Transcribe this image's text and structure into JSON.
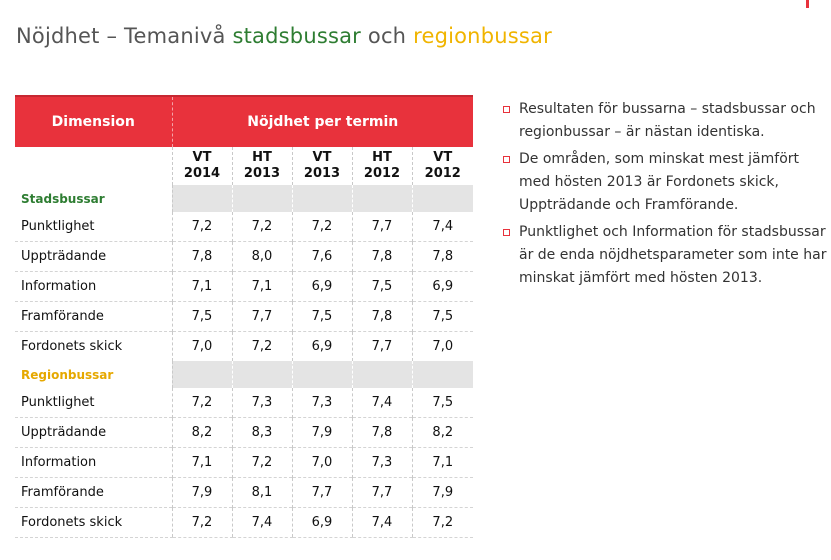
{
  "title": {
    "prefix": "Nöjdhet – Temanivå ",
    "stadsbussar": "stadsbussar",
    "och": " och ",
    "regionbussar": "regionbussar"
  },
  "colors": {
    "accent": "#e8323c",
    "stadsbussar": "#2e7d32",
    "regionbussar": "#f0b400"
  },
  "table": {
    "header_dimension": "Dimension",
    "header_terms": "Nöjdhet per termin",
    "terms": [
      {
        "season": "VT",
        "year": "2014"
      },
      {
        "season": "HT",
        "year": "2013"
      },
      {
        "season": "VT",
        "year": "2013"
      },
      {
        "season": "HT",
        "year": "2012"
      },
      {
        "season": "VT",
        "year": "2012"
      }
    ],
    "groups": [
      {
        "name": "Stadsbussar",
        "rows": [
          {
            "label": "Punktlighet",
            "values": [
              "7,2",
              "7,2",
              "7,2",
              "7,7",
              "7,4"
            ]
          },
          {
            "label": "Uppträdande",
            "values": [
              "7,8",
              "8,0",
              "7,6",
              "7,8",
              "7,8"
            ]
          },
          {
            "label": "Information",
            "values": [
              "7,1",
              "7,1",
              "6,9",
              "7,5",
              "6,9"
            ]
          },
          {
            "label": "Framförande",
            "values": [
              "7,5",
              "7,7",
              "7,5",
              "7,8",
              "7,5"
            ]
          },
          {
            "label": "Fordonets skick",
            "values": [
              "7,0",
              "7,2",
              "6,9",
              "7,7",
              "7,0"
            ]
          }
        ]
      },
      {
        "name": "Regionbussar",
        "rows": [
          {
            "label": "Punktlighet",
            "values": [
              "7,2",
              "7,3",
              "7,3",
              "7,4",
              "7,5"
            ]
          },
          {
            "label": "Uppträdande",
            "values": [
              "8,2",
              "8,3",
              "7,9",
              "7,8",
              "8,2"
            ]
          },
          {
            "label": "Information",
            "values": [
              "7,1",
              "7,2",
              "7,0",
              "7,3",
              "7,1"
            ]
          },
          {
            "label": "Framförande",
            "values": [
              "7,9",
              "8,1",
              "7,7",
              "7,7",
              "7,9"
            ]
          },
          {
            "label": "Fordonets skick",
            "values": [
              "7,2",
              "7,4",
              "6,9",
              "7,4",
              "7,2"
            ]
          }
        ]
      }
    ]
  },
  "notes": [
    "Resultaten för bussarna – stadsbussar och regionbussar – är nästan identiska.",
    "De områden, som minskat mest jämfört med hösten 2013 är Fordonets skick, Uppträdande och Framförande.",
    "Punktlighet och Information för stadsbussar är de enda nöjdhetsparameter som inte har minskat jämfört med hösten 2013."
  ]
}
